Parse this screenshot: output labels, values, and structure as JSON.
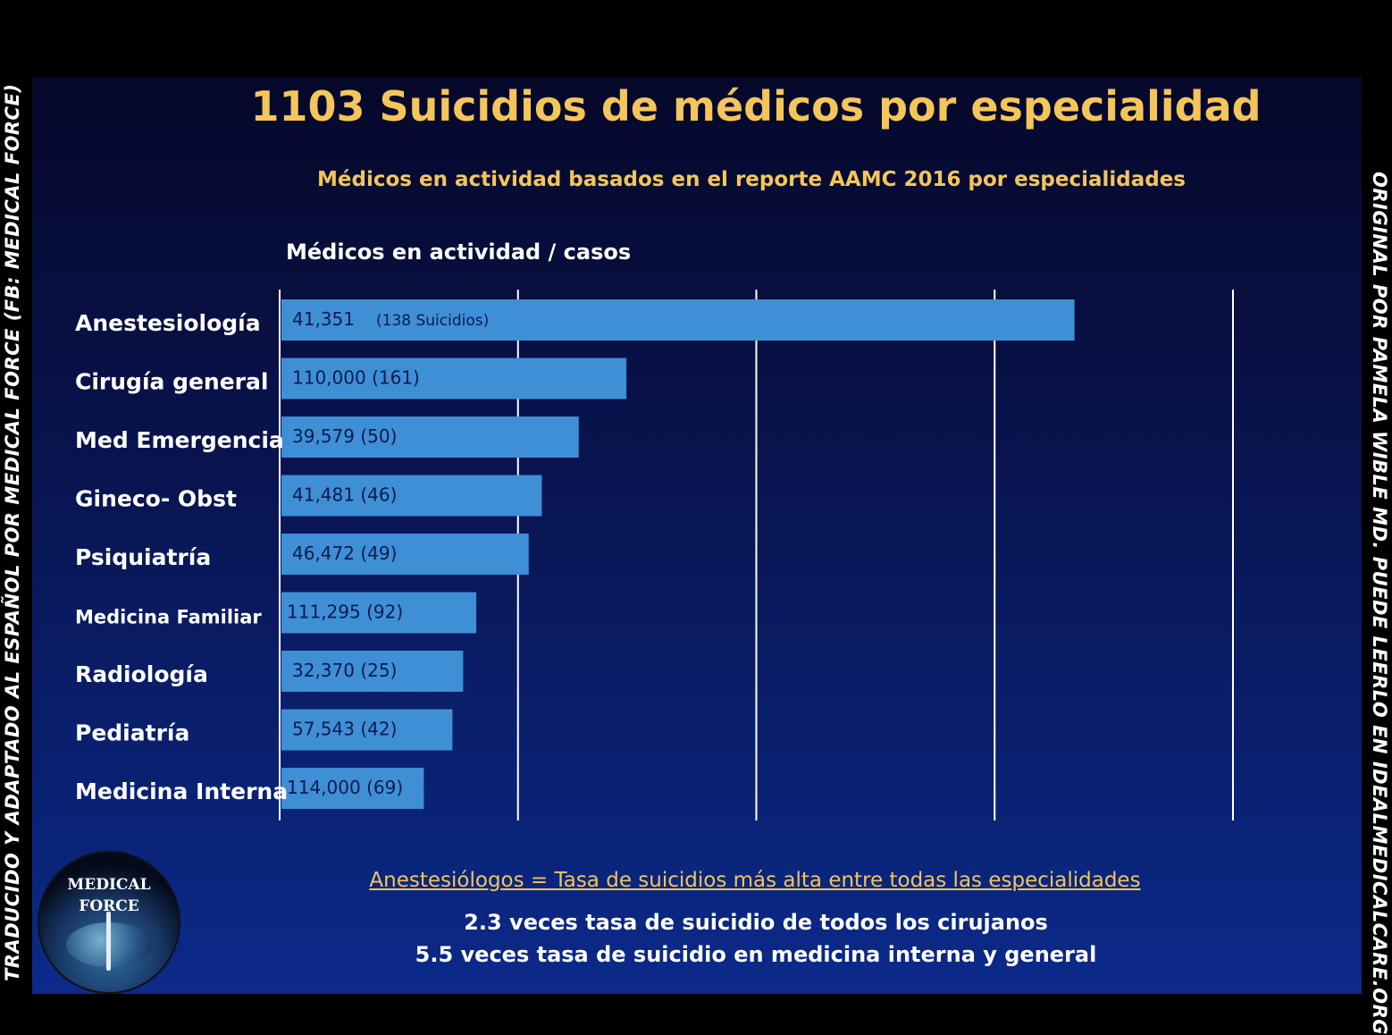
{
  "slide": {
    "title": "1103 Suicidios de médicos por especialidad",
    "subtitle": "Médicos en actividad basados en el reporte AAMC 2016 por especialidades",
    "side_left": "TRADUCIDO Y ADAPTADO AL ESPAÑOL POR MEDICAL FORCE (FB: MEDICAL FORCE)",
    "side_right": "ORIGINAL POR PAMELA WIBLE MD. PUEDE LEERLO EN IDEALMEDICALCARE.ORG",
    "notes": {
      "headline": "Anestesiólogos = Tasa de suicidios más alta entre todas las especialidades",
      "line1": "2.3 veces tasa de suicidio de todos los cirujanos",
      "line2": "5.5 veces tasa de suicidio en medicina interna y general"
    },
    "logo": {
      "line1": "MEDICAL",
      "line2": "FORCE"
    }
  },
  "colors": {
    "bar": "#3e8fd6",
    "title": "#f4c55a",
    "background": "#0a1a5c",
    "gridline": "#ffffff"
  },
  "chart_data": {
    "type": "bar",
    "orientation": "horizontal",
    "title": "1103 Suicidios de médicos por especialidad",
    "subtitle": "Médicos en actividad basados en el reporte AAMC 2016 por especialidades",
    "axis_label": "Médicos en actividad / casos",
    "categories": [
      "Anestesiología",
      "Cirugía general",
      "Med Emergencia",
      "Gineco- Obst",
      "Psiquiatría",
      "Medicina Familiar",
      "Radiología",
      "Pediatría",
      "Medicina Interna"
    ],
    "values": [
      138,
      161,
      50,
      46,
      49,
      92,
      25,
      42,
      69
    ],
    "bar_lengths": [
      6.67,
      2.91,
      2.51,
      2.2,
      2.09,
      1.65,
      1.54,
      1.45,
      1.21
    ],
    "xlim": [
      0,
      8
    ],
    "gridlines": [
      2,
      4,
      6,
      8
    ],
    "grid": true,
    "data_labels": [
      "41,351",
      "110,000 (161)",
      "39,579 (50)",
      "41,481 (46)",
      "46,472 (49)",
      "111,295 (92)",
      "32,370 (25)",
      "57,543 (42)",
      "114,000 (69)"
    ],
    "extra_label": "(138 Suicidios)",
    "physicians_active": [
      41351,
      110000,
      39579,
      41481,
      46472,
      111295,
      32370,
      57543,
      114000
    ]
  }
}
